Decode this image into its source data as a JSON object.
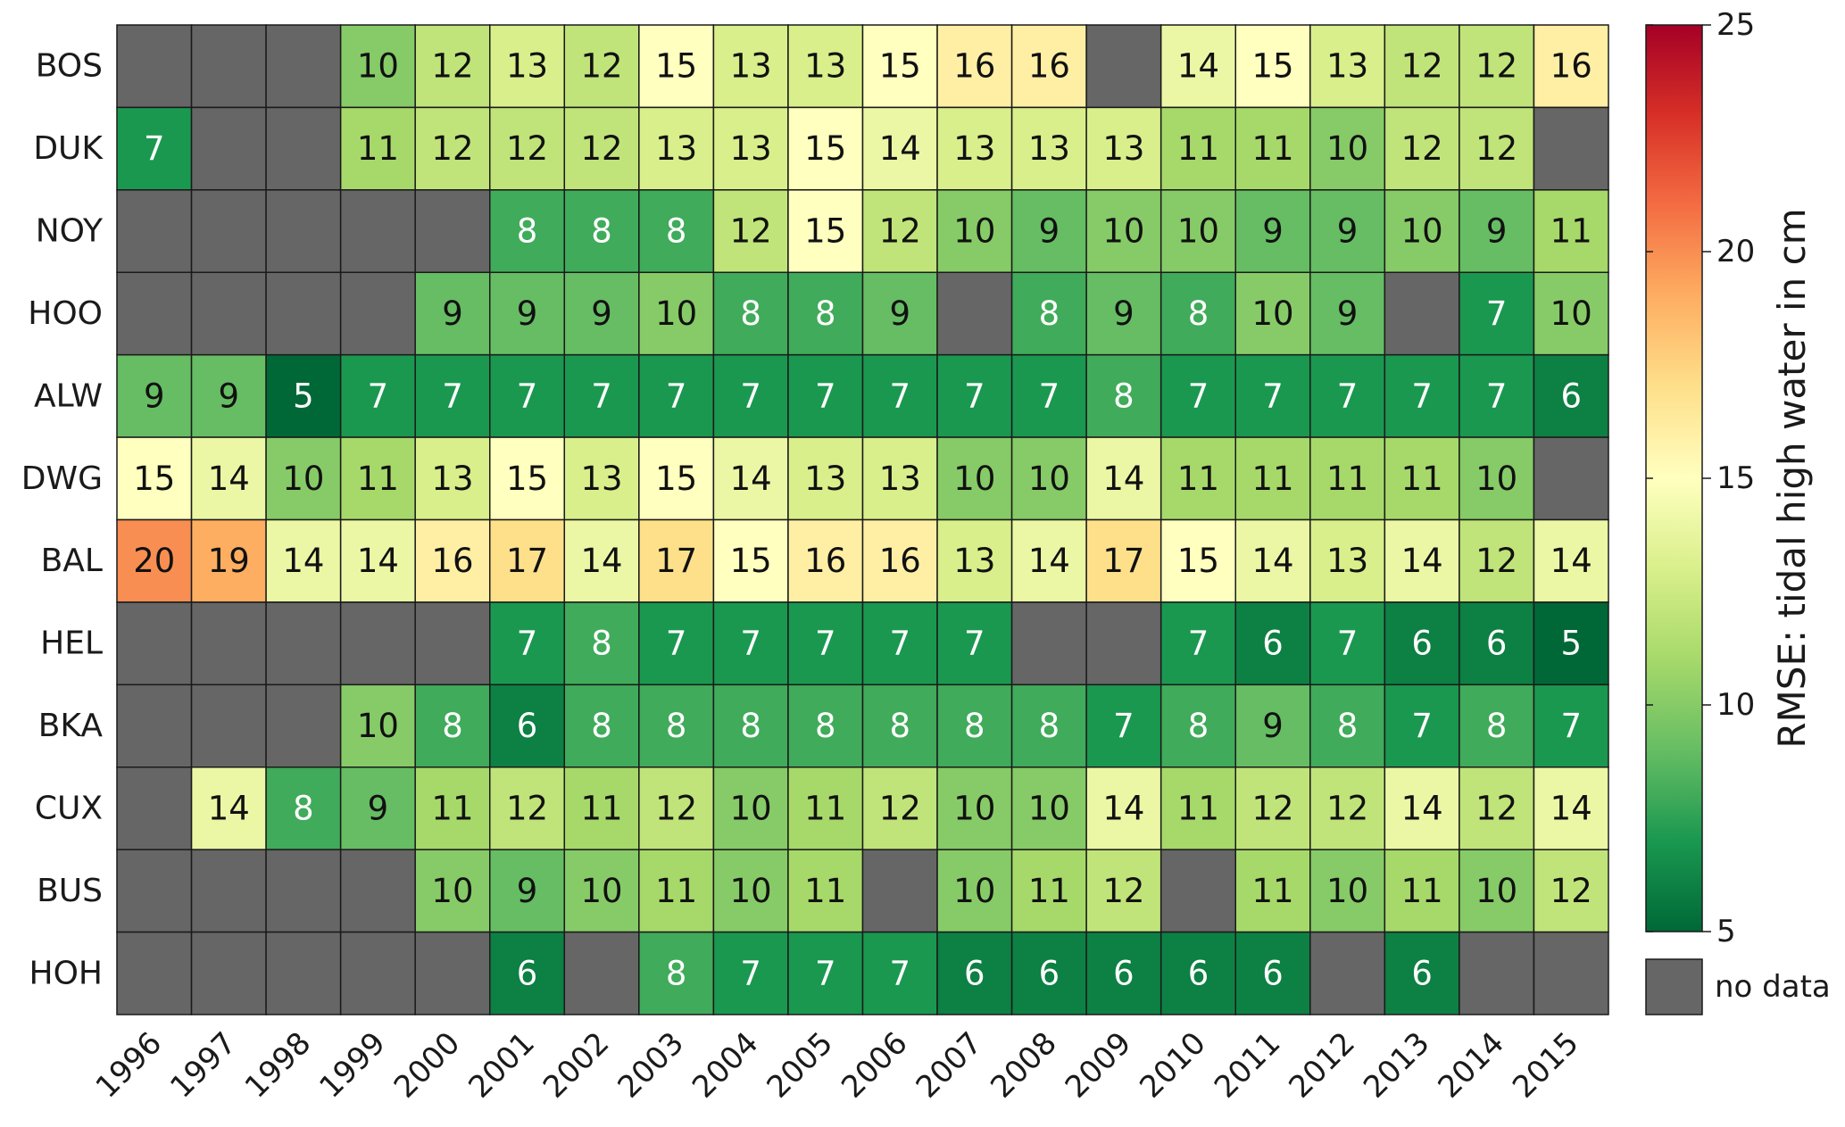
{
  "chart_data": {
    "type": "heatmap",
    "title": "",
    "xlabel": "",
    "ylabel": "",
    "rows": [
      "BOS",
      "DUK",
      "NOY",
      "HOO",
      "ALW",
      "DWG",
      "BAL",
      "HEL",
      "BKA",
      "CUX",
      "BUS",
      "HOH"
    ],
    "columns": [
      "1996",
      "1997",
      "1998",
      "1999",
      "2000",
      "2001",
      "2002",
      "2003",
      "2004",
      "2005",
      "2006",
      "2007",
      "2008",
      "2009",
      "2010",
      "2011",
      "2012",
      "2013",
      "2014",
      "2015"
    ],
    "values": [
      [
        null,
        null,
        null,
        10,
        12,
        13,
        12,
        15,
        13,
        13,
        15,
        16,
        16,
        null,
        14,
        15,
        13,
        12,
        12,
        16
      ],
      [
        7,
        null,
        null,
        11,
        12,
        12,
        12,
        13,
        13,
        15,
        14,
        13,
        13,
        13,
        11,
        11,
        10,
        12,
        12,
        null
      ],
      [
        null,
        null,
        null,
        null,
        null,
        8,
        8,
        8,
        12,
        15,
        12,
        10,
        9,
        10,
        10,
        9,
        9,
        10,
        9,
        11
      ],
      [
        null,
        null,
        null,
        null,
        9,
        9,
        9,
        10,
        8,
        8,
        9,
        null,
        8,
        9,
        8,
        10,
        9,
        null,
        7,
        10
      ],
      [
        9,
        9,
        5,
        7,
        7,
        7,
        7,
        7,
        7,
        7,
        7,
        7,
        7,
        8,
        7,
        7,
        7,
        7,
        7,
        6
      ],
      [
        15,
        14,
        10,
        11,
        13,
        15,
        13,
        15,
        14,
        13,
        13,
        10,
        10,
        14,
        11,
        11,
        11,
        11,
        10,
        null
      ],
      [
        20,
        19,
        14,
        14,
        16,
        17,
        14,
        17,
        15,
        16,
        16,
        13,
        14,
        17,
        15,
        14,
        13,
        14,
        12,
        14
      ],
      [
        null,
        null,
        null,
        null,
        null,
        7,
        8,
        7,
        7,
        7,
        7,
        7,
        null,
        null,
        7,
        6,
        7,
        6,
        6,
        5
      ],
      [
        null,
        null,
        null,
        10,
        8,
        6,
        8,
        8,
        8,
        8,
        8,
        8,
        8,
        7,
        8,
        9,
        8,
        7,
        8,
        7
      ],
      [
        null,
        14,
        8,
        9,
        11,
        12,
        11,
        12,
        10,
        11,
        12,
        10,
        10,
        14,
        11,
        12,
        12,
        14,
        12,
        14
      ],
      [
        null,
        null,
        null,
        null,
        10,
        9,
        10,
        11,
        10,
        11,
        null,
        10,
        11,
        12,
        null,
        11,
        10,
        11,
        10,
        12
      ],
      [
        null,
        null,
        null,
        null,
        null,
        6,
        null,
        8,
        7,
        7,
        7,
        6,
        6,
        6,
        6,
        6,
        null,
        6,
        null,
        null
      ]
    ],
    "colorbar": {
      "label": "RMSE: tidal high water in cm",
      "range": [
        5,
        25
      ],
      "ticks": [
        5,
        10,
        15,
        20,
        25
      ],
      "colormap": "RdYlGn_r"
    },
    "no_data": {
      "label": "no data",
      "color": "#666666"
    }
  }
}
